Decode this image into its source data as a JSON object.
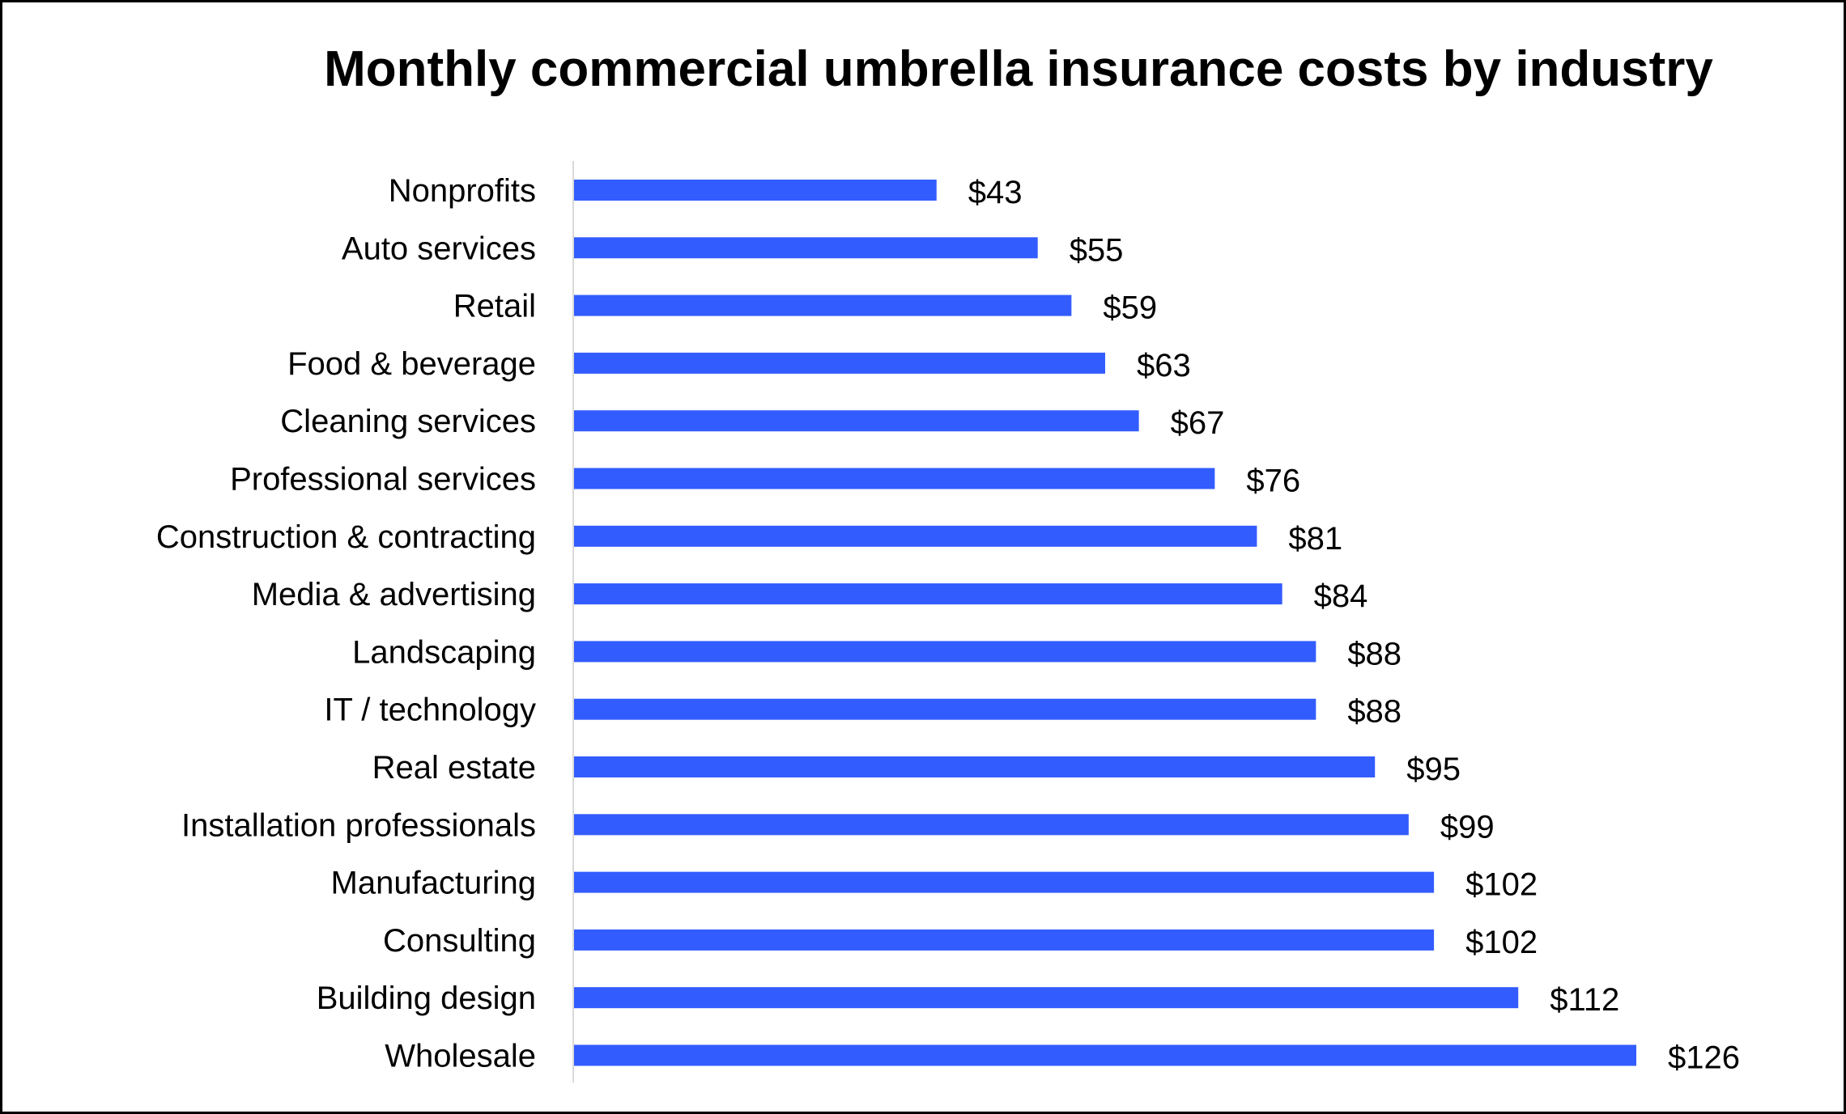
{
  "chart_data": {
    "type": "bar",
    "orientation": "horizontal",
    "title": "Monthly commercial umbrella insurance costs by industry",
    "xlabel": "",
    "ylabel": "",
    "categories": [
      "Nonprofits",
      "Auto services",
      "Retail",
      "Food & beverage",
      "Cleaning services",
      "Professional services",
      "Construction & contracting",
      "Media & advertising",
      "Landscaping",
      "IT / technology",
      "Real estate",
      "Installation professionals",
      "Manufacturing",
      "Consulting",
      "Building design",
      "Wholesale"
    ],
    "values": [
      43,
      55,
      59,
      63,
      67,
      76,
      81,
      84,
      88,
      88,
      95,
      99,
      102,
      102,
      112,
      126
    ],
    "data_labels": [
      "$43",
      "$55",
      "$59",
      "$63",
      "$67",
      "$76",
      "$81",
      "$84",
      "$88",
      "$88",
      "$95",
      "$99",
      "$102",
      "$102",
      "$112",
      "$126"
    ],
    "xlim": [
      0,
      126
    ],
    "grid": false,
    "legend": "none",
    "bar_color": "#335CFF"
  }
}
